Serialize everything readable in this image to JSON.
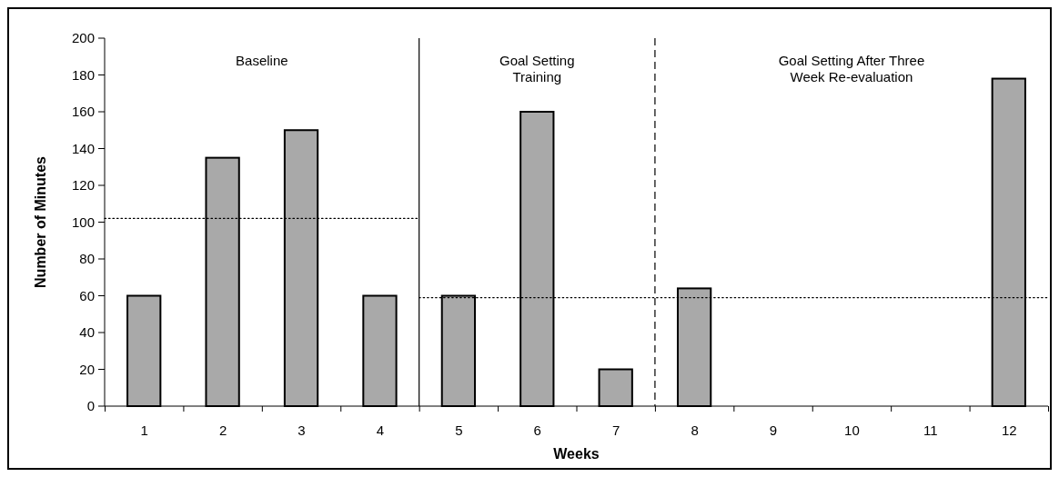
{
  "chart_data": {
    "type": "bar",
    "xlabel": "Weeks",
    "ylabel": "Number of Minutes",
    "series": [
      {
        "color": "#a9a9a9",
        "x": [
          1,
          2,
          3,
          4,
          5,
          6,
          7,
          8,
          12
        ],
        "values": [
          60,
          135,
          150,
          60,
          60,
          160,
          20,
          64,
          178
        ]
      },
      {
        "type": "line",
        "color": "#000000",
        "line_style": "dotted",
        "x": [
          0.5,
          4.5
        ],
        "values": [
          102,
          102
        ]
      },
      {
        "type": "line",
        "color": "#000000",
        "line_style": "dotted",
        "x": [
          4.5,
          12.5
        ],
        "values": [
          59,
          59
        ]
      }
    ],
    "xlim": [
      0.5,
      12.5
    ],
    "xticks": [
      {
        "value": 0.5,
        "label": null
      },
      1,
      {
        "value": 1.5,
        "label": null
      },
      2,
      {
        "value": 2.5,
        "label": null
      },
      3,
      {
        "value": 3.5,
        "label": null
      },
      4,
      {
        "value": 4.5,
        "label": null
      },
      5,
      {
        "value": 5.5,
        "label": null
      },
      6,
      {
        "value": 6.5,
        "label": null
      },
      7,
      {
        "value": 7.5,
        "label": null
      },
      8,
      {
        "value": 8.5,
        "label": null
      },
      9,
      {
        "value": 9.5,
        "label": null
      },
      10,
      {
        "value": 10.5,
        "label": null
      },
      11,
      {
        "value": 11.5,
        "label": null
      },
      12,
      {
        "value": 12.5,
        "label": null
      }
    ],
    "ylim": [
      0,
      200
    ],
    "yticks": [
      0,
      20,
      40,
      60,
      80,
      100,
      120,
      140,
      160,
      180,
      200
    ],
    "annotations": [
      "Baseline",
      "Goal Setting Training",
      "Goal Setting After Three Week Re-evaluation"
    ],
    "ref_lines": [
      {
        "axis": "x",
        "value": 4.5,
        "color": "#000000",
        "line_style": "solid"
      },
      {
        "axis": "x",
        "value": 7.5,
        "color": "#000000",
        "line_style": "dashed"
      }
    ]
  }
}
